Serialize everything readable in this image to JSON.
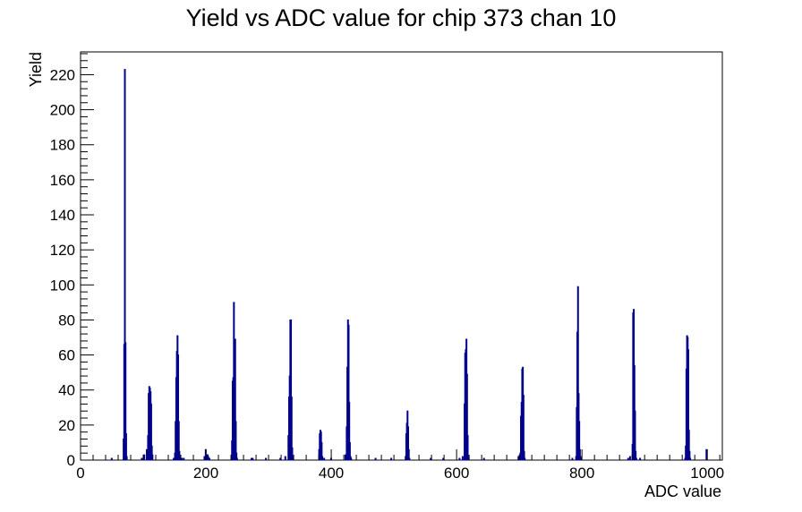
{
  "chart_data": {
    "type": "histogram",
    "title": "Yield vs ADC value for chip 373 chan 10",
    "xlabel": "ADC value",
    "ylabel": "Yield",
    "xlim": [
      0,
      1024
    ],
    "ylim": [
      0,
      233
    ],
    "xticks": [
      0,
      200,
      400,
      600,
      800,
      1000
    ],
    "yticks": [
      0,
      20,
      40,
      60,
      80,
      100,
      120,
      140,
      160,
      180,
      200,
      220
    ],
    "grid": false,
    "line_color": "#00008b",
    "bins": [
      [
        49,
        1
      ],
      [
        68,
        12
      ],
      [
        69,
        66
      ],
      [
        70,
        223
      ],
      [
        71,
        67
      ],
      [
        72,
        15
      ],
      [
        73,
        2
      ],
      [
        97,
        1
      ],
      [
        101,
        3
      ],
      [
        105,
        6
      ],
      [
        107,
        14
      ],
      [
        108,
        38
      ],
      [
        109,
        42
      ],
      [
        110,
        41
      ],
      [
        111,
        39
      ],
      [
        112,
        32
      ],
      [
        113,
        8
      ],
      [
        114,
        3
      ],
      [
        148,
        1
      ],
      [
        150,
        4
      ],
      [
        151,
        22
      ],
      [
        152,
        47
      ],
      [
        153,
        62
      ],
      [
        154,
        71
      ],
      [
        155,
        60
      ],
      [
        156,
        22
      ],
      [
        157,
        5
      ],
      [
        158,
        1
      ],
      [
        161,
        1
      ],
      [
        164,
        1
      ],
      [
        197,
        2
      ],
      [
        199,
        6
      ],
      [
        200,
        3
      ],
      [
        201,
        1
      ],
      [
        202,
        3
      ],
      [
        203,
        2
      ],
      [
        205,
        1
      ],
      [
        240,
        2
      ],
      [
        241,
        11
      ],
      [
        242,
        45
      ],
      [
        243,
        47
      ],
      [
        244,
        90
      ],
      [
        245,
        46
      ],
      [
        246,
        69
      ],
      [
        247,
        22
      ],
      [
        248,
        4
      ],
      [
        249,
        1
      ],
      [
        272,
        1
      ],
      [
        274,
        1
      ],
      [
        295,
        1
      ],
      [
        318,
        1
      ],
      [
        326,
        2
      ],
      [
        331,
        14
      ],
      [
        332,
        36
      ],
      [
        333,
        48
      ],
      [
        334,
        80
      ],
      [
        335,
        80
      ],
      [
        336,
        36
      ],
      [
        337,
        7
      ],
      [
        338,
        1
      ],
      [
        380,
        6
      ],
      [
        381,
        15
      ],
      [
        382,
        17
      ],
      [
        383,
        16
      ],
      [
        384,
        10
      ],
      [
        385,
        2
      ],
      [
        388,
        1
      ],
      [
        399,
        1
      ],
      [
        422,
        3
      ],
      [
        424,
        19
      ],
      [
        425,
        53
      ],
      [
        426,
        80
      ],
      [
        427,
        77
      ],
      [
        428,
        33
      ],
      [
        429,
        10
      ],
      [
        430,
        2
      ],
      [
        431,
        1
      ],
      [
        470,
        1
      ],
      [
        495,
        1
      ],
      [
        518,
        2
      ],
      [
        519,
        15
      ],
      [
        520,
        21
      ],
      [
        521,
        28
      ],
      [
        522,
        19
      ],
      [
        523,
        6
      ],
      [
        524,
        1
      ],
      [
        558,
        1
      ],
      [
        578,
        1
      ],
      [
        604,
        1
      ],
      [
        609,
        2
      ],
      [
        612,
        32
      ],
      [
        613,
        61
      ],
      [
        614,
        63
      ],
      [
        615,
        69
      ],
      [
        616,
        49
      ],
      [
        617,
        14
      ],
      [
        618,
        2
      ],
      [
        643,
        1
      ],
      [
        698,
        2
      ],
      [
        701,
        4
      ],
      [
        702,
        25
      ],
      [
        703,
        33
      ],
      [
        704,
        52
      ],
      [
        705,
        53
      ],
      [
        706,
        37
      ],
      [
        707,
        5
      ],
      [
        708,
        1
      ],
      [
        784,
        1
      ],
      [
        790,
        2
      ],
      [
        791,
        30
      ],
      [
        792,
        73
      ],
      [
        793,
        99
      ],
      [
        794,
        38
      ],
      [
        795,
        22
      ],
      [
        796,
        6
      ],
      [
        797,
        2
      ],
      [
        798,
        1
      ],
      [
        873,
        1
      ],
      [
        876,
        2
      ],
      [
        880,
        9
      ],
      [
        881,
        84
      ],
      [
        882,
        86
      ],
      [
        883,
        54
      ],
      [
        884,
        28
      ],
      [
        885,
        5
      ],
      [
        886,
        1
      ],
      [
        892,
        1
      ],
      [
        964,
        1
      ],
      [
        965,
        8
      ],
      [
        966,
        52
      ],
      [
        967,
        71
      ],
      [
        968,
        70
      ],
      [
        969,
        63
      ],
      [
        970,
        17
      ],
      [
        971,
        5
      ],
      [
        972,
        1
      ],
      [
        998,
        6
      ]
    ]
  }
}
